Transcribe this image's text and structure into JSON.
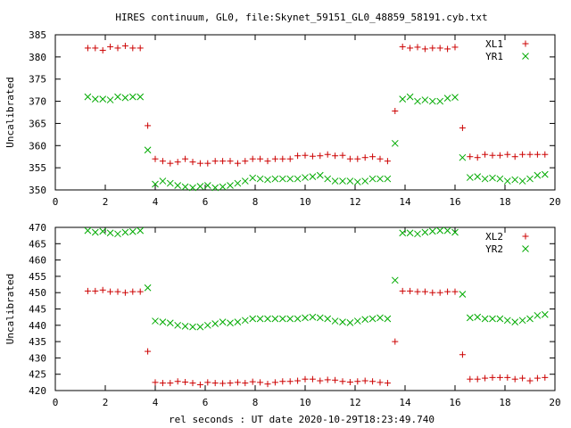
{
  "chart_data": {
    "title": "HIRES continuum, GL0, file:Skynet_59151_GL0_48859_58191.cyb.txt",
    "xlabel": "rel seconds : UT date 2020-10-29T18:23:49.740",
    "plots": [
      {
        "type": "scatter",
        "ylabel": "Uncalibrated",
        "xlim": [
          0,
          20
        ],
        "ylim": [
          350,
          385
        ],
        "xticks": [
          0,
          2,
          4,
          6,
          8,
          10,
          12,
          14,
          16,
          18,
          20
        ],
        "yticks": [
          350,
          355,
          360,
          365,
          370,
          375,
          380,
          385
        ],
        "grid": false,
        "legend": "top-right",
        "series": [
          {
            "name": "XL1",
            "marker": "plus",
            "color": "#cc0000",
            "x": [
              1.3,
              1.6,
              1.9,
              2.2,
              2.5,
              2.8,
              3.1,
              3.4,
              3.7,
              4.0,
              4.3,
              4.6,
              4.9,
              5.2,
              5.5,
              5.8,
              6.1,
              6.4,
              6.7,
              7.0,
              7.3,
              7.6,
              7.9,
              8.2,
              8.5,
              8.8,
              9.1,
              9.4,
              9.7,
              10.0,
              10.3,
              10.6,
              10.9,
              11.2,
              11.5,
              11.8,
              12.1,
              12.4,
              12.7,
              13.0,
              13.3,
              13.6,
              13.9,
              14.2,
              14.5,
              14.8,
              15.1,
              15.4,
              15.7,
              16.0,
              16.3,
              16.6,
              16.9,
              17.2,
              17.5,
              17.8,
              18.1,
              18.4,
              18.7,
              19.0,
              19.3,
              19.6
            ],
            "y": [
              382.0,
              382.0,
              381.5,
              382.3,
              382.0,
              382.5,
              382.0,
              382.0,
              364.5,
              357.0,
              356.5,
              356.0,
              356.3,
              357.0,
              356.3,
              356.0,
              356.0,
              356.5,
              356.5,
              356.5,
              356.0,
              356.5,
              357.0,
              357.0,
              356.5,
              357.0,
              357.0,
              357.0,
              357.7,
              357.8,
              357.6,
              357.7,
              358.0,
              357.7,
              357.8,
              357.0,
              357.0,
              357.3,
              357.5,
              357.0,
              356.5,
              367.8,
              382.3,
              382.0,
              382.2,
              381.8,
              382.0,
              382.0,
              381.8,
              382.2,
              364.0,
              357.5,
              357.3,
              358.0,
              357.8,
              357.8,
              358.0,
              357.5,
              358.0,
              358.0,
              358.0,
              358.0
            ]
          },
          {
            "name": "YR1",
            "marker": "cross",
            "color": "#00aa00",
            "x": [
              1.3,
              1.6,
              1.9,
              2.2,
              2.5,
              2.8,
              3.1,
              3.4,
              3.7,
              4.0,
              4.3,
              4.6,
              4.9,
              5.2,
              5.5,
              5.8,
              6.1,
              6.4,
              6.7,
              7.0,
              7.3,
              7.6,
              7.9,
              8.2,
              8.5,
              8.8,
              9.1,
              9.4,
              9.7,
              10.0,
              10.3,
              10.6,
              10.9,
              11.2,
              11.5,
              11.8,
              12.1,
              12.4,
              12.7,
              13.0,
              13.3,
              13.6,
              13.9,
              14.2,
              14.5,
              14.8,
              15.1,
              15.4,
              15.7,
              16.0,
              16.3,
              16.6,
              16.9,
              17.2,
              17.5,
              17.8,
              18.1,
              18.4,
              18.7,
              19.0,
              19.3,
              19.6
            ],
            "y": [
              371.0,
              370.5,
              370.5,
              370.3,
              371.0,
              370.8,
              371.0,
              371.0,
              359.0,
              351.3,
              352.0,
              351.5,
              351.0,
              350.7,
              350.5,
              350.8,
              351.0,
              350.5,
              350.7,
              351.0,
              351.5,
              352.0,
              352.7,
              352.5,
              352.3,
              352.5,
              352.5,
              352.5,
              352.5,
              352.8,
              353.0,
              353.3,
              352.5,
              352.0,
              352.0,
              352.0,
              351.8,
              352.0,
              352.5,
              352.5,
              352.5,
              360.5,
              370.5,
              371.0,
              370.0,
              370.3,
              370.0,
              370.0,
              370.7,
              370.9,
              357.3,
              352.8,
              353.0,
              352.5,
              352.7,
              352.5,
              352.0,
              352.3,
              352.0,
              352.5,
              353.3,
              353.5
            ]
          }
        ]
      },
      {
        "type": "scatter",
        "ylabel": "Uncalibrated",
        "xlim": [
          0,
          20
        ],
        "ylim": [
          420,
          470
        ],
        "xticks": [
          0,
          2,
          4,
          6,
          8,
          10,
          12,
          14,
          16,
          18,
          20
        ],
        "yticks": [
          420,
          425,
          430,
          435,
          440,
          445,
          450,
          455,
          460,
          465,
          470
        ],
        "grid": false,
        "legend": "top-right",
        "series": [
          {
            "name": "XL2",
            "marker": "plus",
            "color": "#cc0000",
            "x": [
              1.3,
              1.6,
              1.9,
              2.2,
              2.5,
              2.8,
              3.1,
              3.4,
              3.7,
              4.0,
              4.3,
              4.6,
              4.9,
              5.2,
              5.5,
              5.8,
              6.1,
              6.4,
              6.7,
              7.0,
              7.3,
              7.6,
              7.9,
              8.2,
              8.5,
              8.8,
              9.1,
              9.4,
              9.7,
              10.0,
              10.3,
              10.6,
              10.9,
              11.2,
              11.5,
              11.8,
              12.1,
              12.4,
              12.7,
              13.0,
              13.3,
              13.6,
              13.9,
              14.2,
              14.5,
              14.8,
              15.1,
              15.4,
              15.7,
              16.0,
              16.3,
              16.6,
              16.9,
              17.2,
              17.5,
              17.8,
              18.1,
              18.4,
              18.7,
              19.0,
              19.3,
              19.6
            ],
            "y": [
              450.5,
              450.5,
              450.8,
              450.3,
              450.3,
              450.0,
              450.3,
              450.3,
              432.0,
              422.5,
              422.3,
              422.3,
              422.8,
              422.6,
              422.3,
              421.8,
              422.5,
              422.3,
              422.2,
              422.3,
              422.5,
              422.3,
              422.7,
              422.5,
              422.0,
              422.5,
              422.8,
              422.8,
              423.0,
              423.5,
              423.5,
              423.0,
              423.3,
              423.2,
              422.8,
              422.6,
              422.8,
              423.0,
              422.8,
              422.5,
              422.3,
              435.0,
              450.5,
              450.5,
              450.3,
              450.3,
              450.0,
              450.0,
              450.3,
              450.3,
              431.0,
              423.5,
              423.5,
              423.8,
              424.0,
              424.0,
              424.0,
              423.5,
              423.8,
              423.0,
              423.8,
              424.0
            ]
          },
          {
            "name": "YR2",
            "marker": "cross",
            "color": "#00aa00",
            "x": [
              1.3,
              1.6,
              1.9,
              2.2,
              2.5,
              2.8,
              3.1,
              3.4,
              3.7,
              4.0,
              4.3,
              4.6,
              4.9,
              5.2,
              5.5,
              5.8,
              6.1,
              6.4,
              6.7,
              7.0,
              7.3,
              7.6,
              7.9,
              8.2,
              8.5,
              8.8,
              9.1,
              9.4,
              9.7,
              10.0,
              10.3,
              10.6,
              10.9,
              11.2,
              11.5,
              11.8,
              12.1,
              12.4,
              12.7,
              13.0,
              13.3,
              13.6,
              13.9,
              14.2,
              14.5,
              14.8,
              15.1,
              15.4,
              15.7,
              16.0,
              16.3,
              16.6,
              16.9,
              17.2,
              17.5,
              17.8,
              18.1,
              18.4,
              18.7,
              19.0,
              19.3,
              19.6
            ],
            "y": [
              469.0,
              468.5,
              468.8,
              468.3,
              468.0,
              468.5,
              468.7,
              469.0,
              451.5,
              441.3,
              441.0,
              440.7,
              440.0,
              439.7,
              439.5,
              439.5,
              440.0,
              440.5,
              441.0,
              440.7,
              441.0,
              441.5,
              442.0,
              442.0,
              442.0,
              442.0,
              442.0,
              442.0,
              442.0,
              442.3,
              442.5,
              442.3,
              442.0,
              441.3,
              441.0,
              440.8,
              441.3,
              441.8,
              442.0,
              442.3,
              442.0,
              453.8,
              468.3,
              468.3,
              468.0,
              468.5,
              468.8,
              469.0,
              469.0,
              468.5,
              449.5,
              442.3,
              442.5,
              442.0,
              442.0,
              442.0,
              441.5,
              441.0,
              441.5,
              442.0,
              443.0,
              443.3
            ]
          }
        ]
      }
    ]
  }
}
